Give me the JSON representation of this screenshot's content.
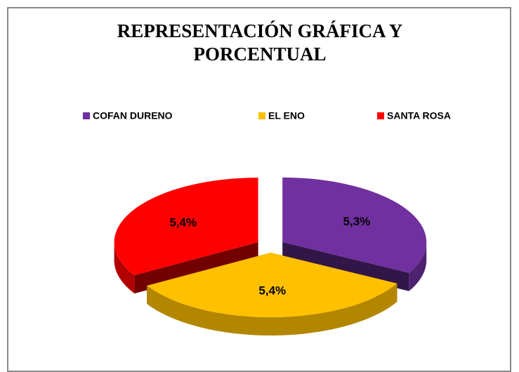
{
  "chart_data": {
    "type": "pie",
    "title": "REPRESENTACIÓN GRÁFICA Y PORCENTUAL",
    "categories": [
      "COFAN DURENO",
      "EL ENO",
      "SANTA ROSA"
    ],
    "values": [
      5.3,
      5.4,
      5.4
    ],
    "value_labels": [
      "5,3%",
      "5,4%",
      "5,4%"
    ],
    "colors": [
      "#7030a0",
      "#ffc000",
      "#ff0000"
    ],
    "legend": "top"
  }
}
